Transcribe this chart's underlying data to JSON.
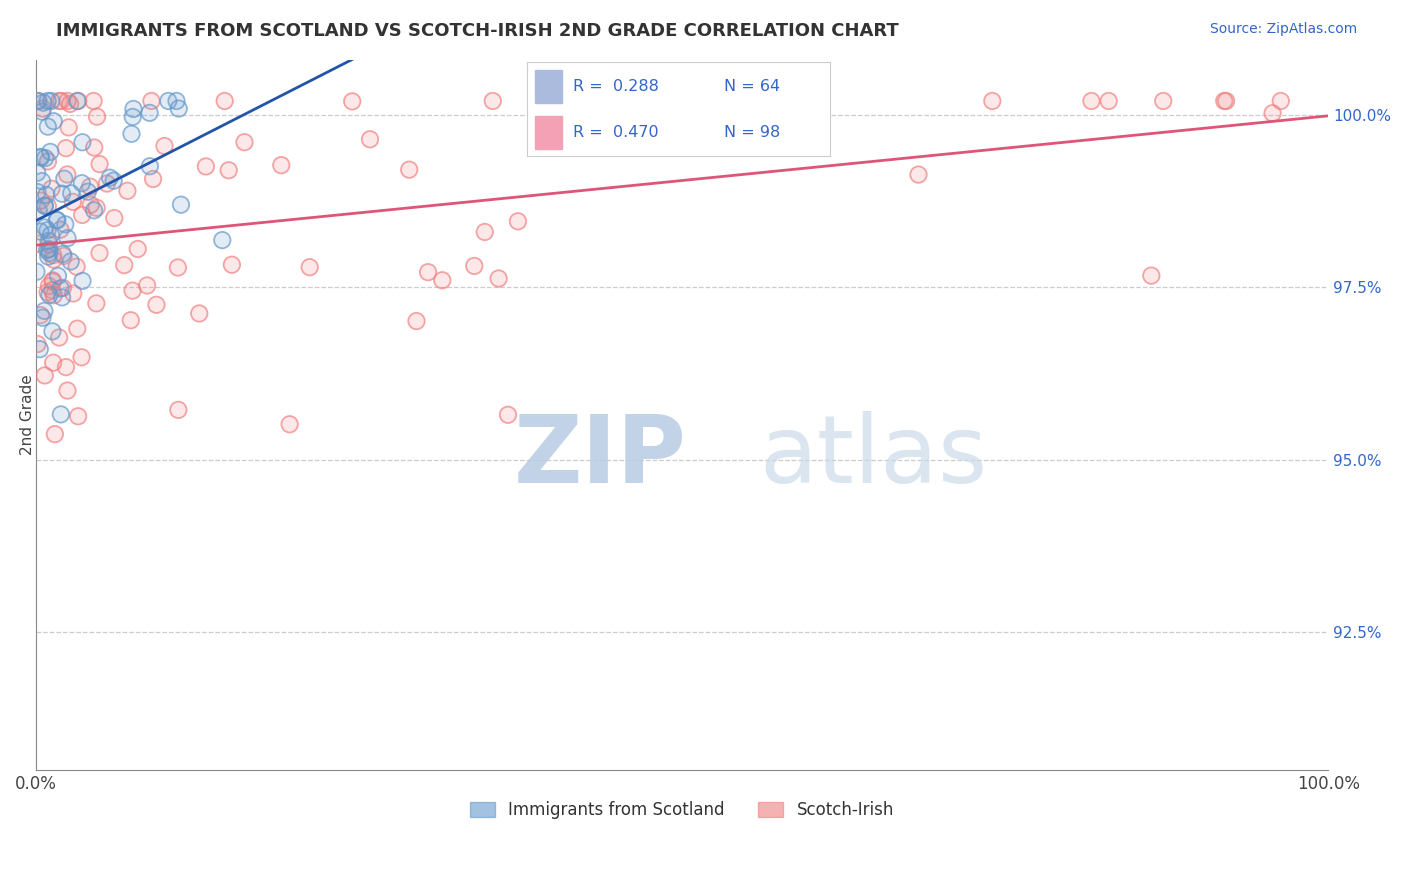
{
  "title": "IMMIGRANTS FROM SCOTLAND VS SCOTCH-IRISH 2ND GRADE CORRELATION CHART",
  "source_text": "Source: ZipAtlas.com",
  "ylabel": "2nd Grade",
  "ylabel_right_labels": [
    "100.0%",
    "97.5%",
    "95.0%",
    "92.5%"
  ],
  "ylabel_right_values": [
    1.0,
    0.975,
    0.95,
    0.925
  ],
  "watermark_zip": "ZIP",
  "watermark_atlas": "atlas",
  "watermark_zip_color": "#b8cce4",
  "watermark_atlas_color": "#c8d8e8",
  "scotland_color": "#6699cc",
  "scotch_irish_color": "#f08080",
  "scotland_line_color": "#2255aa",
  "scotch_irish_line_color": "#dd5577",
  "scotland_R": 0.288,
  "scotland_N": 64,
  "scotch_irish_R": 0.47,
  "scotch_irish_N": 98,
  "xmin": 0.0,
  "xmax": 1.0,
  "ymin": 0.905,
  "ymax": 1.008,
  "legend_box_color1": "#aabbdd",
  "legend_box_color2": "#f4a0b5",
  "legend_text_color": "#3366cc"
}
